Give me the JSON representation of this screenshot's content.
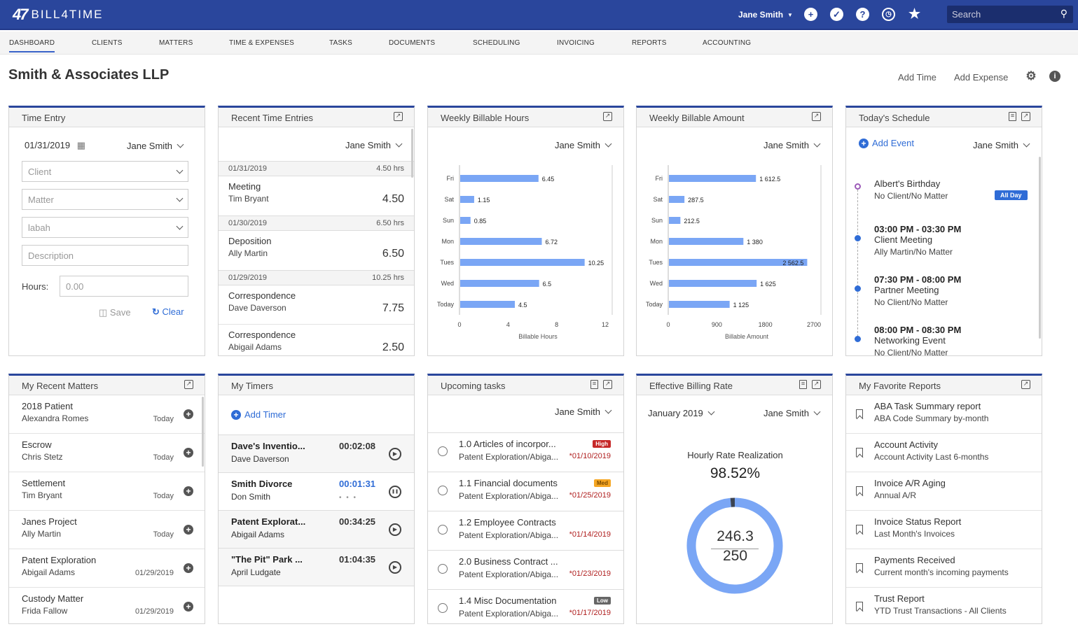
{
  "app": {
    "logo_mark": "47",
    "logo_text": "BILL4TIME"
  },
  "topbar": {
    "user": "Jane Smith",
    "search_placeholder": "Search"
  },
  "nav": [
    "DASHBOARD",
    "CLIENTS",
    "MATTERS",
    "TIME & EXPENSES",
    "TASKS",
    "DOCUMENTS",
    "SCHEDULING",
    "INVOICING",
    "REPORTS",
    "ACCOUNTING"
  ],
  "header": {
    "title": "Smith & Associates LLP",
    "add_time": "Add Time",
    "add_expense": "Add Expense"
  },
  "time_entry": {
    "title": "Time Entry",
    "date": "01/31/2019",
    "user": "Jane Smith",
    "client": "Client",
    "matter": "Matter",
    "activity": "labah",
    "description": "Description",
    "hours_label": "Hours:",
    "hours_placeholder": "0.00",
    "save": "Save",
    "clear": "Clear"
  },
  "recent_entries": {
    "title": "Recent Time Entries",
    "user": "Jane Smith",
    "groups": [
      {
        "date": "01/31/2019",
        "total": "4.50 hrs",
        "items": [
          {
            "task": "Meeting",
            "person": "Tim Bryant",
            "hours": "4.50"
          }
        ]
      },
      {
        "date": "01/30/2019",
        "total": "6.50 hrs",
        "items": [
          {
            "task": "Deposition",
            "person": "Ally Martin",
            "hours": "6.50"
          }
        ]
      },
      {
        "date": "01/29/2019",
        "total": "10.25 hrs",
        "items": [
          {
            "task": "Correspondence",
            "person": "Dave Daverson",
            "hours": "7.75"
          },
          {
            "task": "Correspondence",
            "person": "Abigail Adams",
            "hours": "2.50"
          }
        ]
      }
    ]
  },
  "weekly_hours": {
    "title": "Weekly Billable Hours",
    "user": "Jane Smith"
  },
  "weekly_amount": {
    "title": "Weekly Billable Amount",
    "user": "Jane Smith"
  },
  "chart_data": [
    {
      "type": "bar",
      "orientation": "horizontal",
      "categories": [
        "Fri",
        "Sat",
        "Sun",
        "Mon",
        "Tues",
        "Wed",
        "Today"
      ],
      "values": [
        6.45,
        1.15,
        0.85,
        6.72,
        10.25,
        6.5,
        4.5
      ],
      "value_labels": [
        "6.45",
        "1.15",
        "0.85",
        "6.72",
        "10.25",
        "6.5",
        "4.5"
      ],
      "xlabel": "Billable Hours",
      "xlim": [
        0,
        12
      ],
      "xticks": [
        "0",
        "4",
        "8",
        "12"
      ],
      "color": "#7aa6f5"
    },
    {
      "type": "bar",
      "orientation": "horizontal",
      "categories": [
        "Fri",
        "Sat",
        "Sun",
        "Mon",
        "Tues",
        "Wed",
        "Today"
      ],
      "values": [
        1612.5,
        287.5,
        212.5,
        1380,
        2562.5,
        1625,
        1125
      ],
      "value_labels": [
        "1 612.5",
        "287.5",
        "212.5",
        "1 380",
        "2 562.5",
        "1 625",
        "1 125"
      ],
      "xlabel": "Billable Amount",
      "xlim": [
        0,
        2700
      ],
      "xticks": [
        "0",
        "900",
        "1800",
        "2700"
      ],
      "color": "#7aa6f5"
    },
    {
      "type": "pie",
      "title": "Hourly Rate Realization",
      "percent_label": "98.52%",
      "values": [
        98.52,
        1.48
      ],
      "colors": [
        "#7aa6f5",
        "#3b4453"
      ],
      "center_top": "246.3",
      "center_bottom": "250"
    }
  ],
  "schedule": {
    "title": "Today's Schedule",
    "add": "Add Event",
    "user": "Jane Smith",
    "items": [
      {
        "title": "Albert's Birthday",
        "sub": "No Client/No Matter",
        "badge": "All Day"
      },
      {
        "time": "03:00 PM - 03:30 PM",
        "title": "Client Meeting",
        "sub": "Ally Martin/No Matter"
      },
      {
        "time": "07:30 PM - 08:00 PM",
        "title": "Partner Meeting",
        "sub": "No Client/No Matter"
      },
      {
        "time": "08:00 PM - 08:30 PM",
        "title": "Networking Event",
        "sub": "No Client/No Matter"
      }
    ]
  },
  "recent_matters": {
    "title": "My Recent Matters",
    "items": [
      {
        "name": "2018 Patient",
        "client": "Alexandra Romes",
        "date": "Today"
      },
      {
        "name": "Escrow",
        "client": "Chris Stetz",
        "date": "Today"
      },
      {
        "name": "Settlement",
        "client": "Tim Bryant",
        "date": "Today"
      },
      {
        "name": "Janes Project",
        "client": "Ally Martin",
        "date": "Today"
      },
      {
        "name": "Patent Exploration",
        "client": "Abigail Adams",
        "date": "01/29/2019"
      },
      {
        "name": "Custody Matter",
        "client": "Frida Fallow",
        "date": "01/29/2019"
      }
    ]
  },
  "timers": {
    "title": "My Timers",
    "add": "Add Timer",
    "items": [
      {
        "name": "Dave's Inventio...",
        "client": "Dave Daverson",
        "time": "00:02:08"
      },
      {
        "name": "Smith Divorce",
        "client": "Don Smith",
        "time": "00:01:31"
      },
      {
        "name": "Patent Explorat...",
        "client": "Abigail Adams",
        "time": "00:34:25"
      },
      {
        "name": "\"The Pit\" Park ...",
        "client": "April Ludgate",
        "time": "01:04:35"
      }
    ]
  },
  "tasks": {
    "title": "Upcoming tasks",
    "user": "Jane Smith",
    "items": [
      {
        "name": "1.0 Articles of incorpor...",
        "matter": "Patent Exploration/Abiga...",
        "due": "*01/10/2019",
        "priority": "High",
        "color": "#c62828"
      },
      {
        "name": "1.1 Financial documents",
        "matter": "Patent Exploration/Abiga...",
        "due": "*01/25/2019",
        "priority": "Med",
        "color": "#f5a623"
      },
      {
        "name": "1.2 Employee Contracts",
        "matter": "Patent Exploration/Abiga...",
        "due": "*01/14/2019",
        "priority": "",
        "color": ""
      },
      {
        "name": "2.0 Business Contract ...",
        "matter": "Patent Exploration/Abiga...",
        "due": "*01/23/2019",
        "priority": "",
        "color": ""
      },
      {
        "name": "1.4 Misc Documentation",
        "matter": "Patent Exploration/Abiga...",
        "due": "*01/17/2019",
        "priority": "Low",
        "color": "#666"
      }
    ]
  },
  "billing_rate": {
    "title": "Effective Billing Rate",
    "period": "January 2019",
    "user": "Jane Smith"
  },
  "reports": {
    "title": "My Favorite Reports",
    "items": [
      {
        "name": "ABA Task Summary report",
        "sub": "ABA Code Summary by-month"
      },
      {
        "name": "Account Activity",
        "sub": "Account Activity Last 6-months"
      },
      {
        "name": "Invoice A/R Aging",
        "sub": "Annual A/R"
      },
      {
        "name": "Invoice Status Report",
        "sub": "Last Month's Invoices"
      },
      {
        "name": "Payments Received",
        "sub": "Current month's incoming payments"
      },
      {
        "name": "Trust Report",
        "sub": "YTD Trust Transactions - All Clients"
      }
    ]
  }
}
